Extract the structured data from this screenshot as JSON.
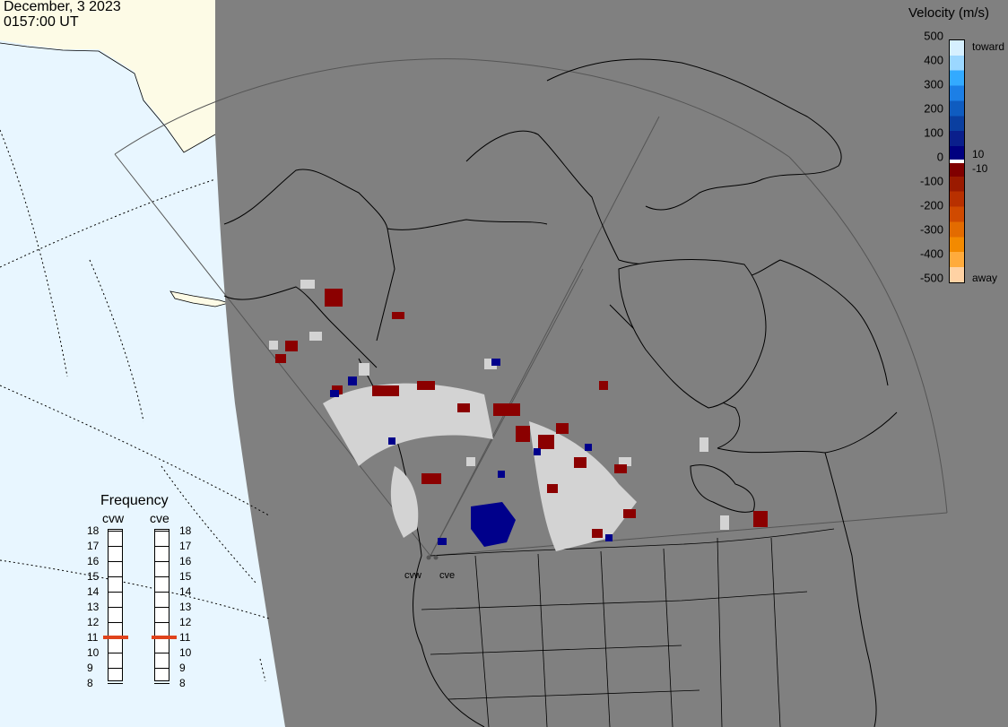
{
  "header": {
    "date": "December, 3 2023",
    "time": "0157:00 UT"
  },
  "velocity_legend": {
    "title": "Velocity (m/s)",
    "toward_label": "toward",
    "away_label": "away",
    "ticks": [
      {
        "label": "500",
        "value": 500
      },
      {
        "label": "400",
        "value": 400
      },
      {
        "label": "300",
        "value": 300
      },
      {
        "label": "200",
        "value": 200
      },
      {
        "label": "100",
        "value": 100
      },
      {
        "label": "0",
        "value": 0
      },
      {
        "label": "-100",
        "value": -100
      },
      {
        "label": "-200",
        "value": -200
      },
      {
        "label": "-300",
        "value": -300
      },
      {
        "label": "-400",
        "value": -400
      },
      {
        "label": "-500",
        "value": -500
      }
    ],
    "inner_labels": [
      "10",
      "-10"
    ],
    "colors": [
      "#d6f0ff",
      "#9bd7ff",
      "#33aaff",
      "#1c7fe6",
      "#0f5cc0",
      "#0a3fa0",
      "#0a1f8c",
      "#000080",
      "#800000",
      "#9a1a00",
      "#b83000",
      "#d04a00",
      "#e36b00",
      "#f38a00",
      "#ffab3c",
      "#ffd2a4"
    ]
  },
  "frequency_panel": {
    "title": "Frequency",
    "radars": [
      {
        "name": "cvw",
        "frequency_mhz": 11
      },
      {
        "name": "cve",
        "frequency_mhz": 11
      }
    ],
    "scale": [
      "18",
      "17",
      "16",
      "15",
      "14",
      "13",
      "12",
      "11",
      "10",
      "9",
      "8"
    ]
  },
  "radar_sites": [
    {
      "name": "cvw"
    },
    {
      "name": "cve"
    }
  ],
  "colors": {
    "night_shade": "#808080",
    "ocean_day": "#e8f6ff",
    "land_day": "#fdfbe6",
    "ground_scatter": "#d3d3d3",
    "frequency_marker": "#e0431c"
  }
}
